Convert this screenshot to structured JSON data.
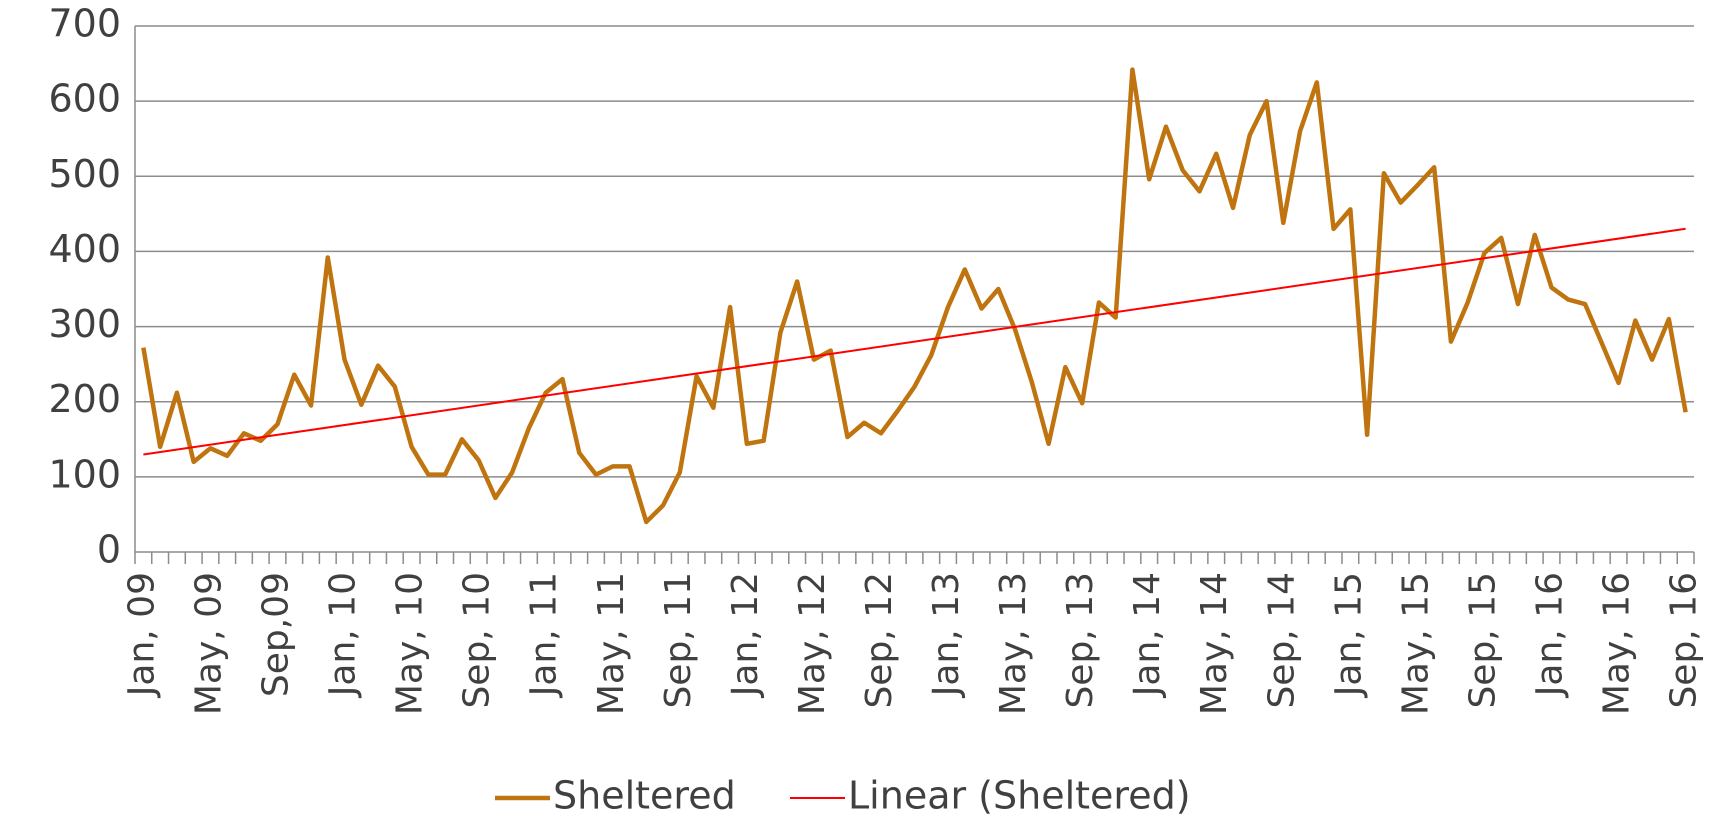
{
  "chart_data": {
    "type": "line",
    "categories": [
      "Jan, 09",
      null,
      null,
      null,
      "May, 09",
      null,
      null,
      null,
      "Sep,09",
      null,
      null,
      null,
      "Jan, 10",
      null,
      null,
      null,
      "May, 10",
      null,
      null,
      null,
      "Sep, 10",
      null,
      null,
      null,
      "Jan, 11",
      null,
      null,
      null,
      "May, 11",
      null,
      null,
      null,
      "Sep, 11",
      null,
      null,
      null,
      "Jan, 12",
      null,
      null,
      null,
      "May, 12",
      null,
      null,
      null,
      "Sep, 12",
      null,
      null,
      null,
      "Jan, 13",
      null,
      null,
      null,
      "May, 13",
      null,
      null,
      null,
      "Sep, 13",
      null,
      null,
      null,
      "Jan, 14",
      null,
      null,
      null,
      "May, 14",
      null,
      null,
      null,
      "Sep, 14",
      null,
      null,
      null,
      "Jan, 15",
      null,
      null,
      null,
      "May, 15",
      null,
      null,
      null,
      "Sep, 15",
      null,
      null,
      null,
      "Jan, 16",
      null,
      null,
      null,
      "May, 16",
      null,
      null,
      null,
      "Sep, 16"
    ],
    "series": [
      {
        "name": "Sheltered",
        "color": "#c0740f",
        "values": [
          272,
          140,
          212,
          120,
          138,
          128,
          158,
          148,
          170,
          236,
          195,
          392,
          256,
          196,
          248,
          220,
          140,
          103,
          103,
          150,
          122,
          72,
          106,
          165,
          212,
          230,
          132,
          103,
          114,
          114,
          40,
          62,
          106,
          234,
          192,
          326,
          144,
          148,
          292,
          360,
          256,
          268,
          153,
          172,
          158,
          188,
          220,
          262,
          326,
          376,
          324,
          350,
          296,
          226,
          144,
          246,
          198,
          332,
          312,
          642,
          496,
          566,
          508,
          480,
          530,
          458,
          555,
          600,
          438,
          560,
          625,
          430,
          456,
          156,
          504,
          465,
          488,
          512,
          280,
          332,
          398,
          418,
          330,
          422,
          352,
          336,
          330,
          278,
          225,
          308,
          256,
          310,
          186
        ]
      }
    ],
    "trendline": {
      "name": "Linear (Sheltered)",
      "color": "#ff0000",
      "fit": "linear"
    },
    "ylim": [
      0,
      700
    ],
    "yticks": [
      0,
      100,
      200,
      300,
      400,
      500,
      600,
      700
    ],
    "grid": true,
    "legend": "bottom"
  }
}
